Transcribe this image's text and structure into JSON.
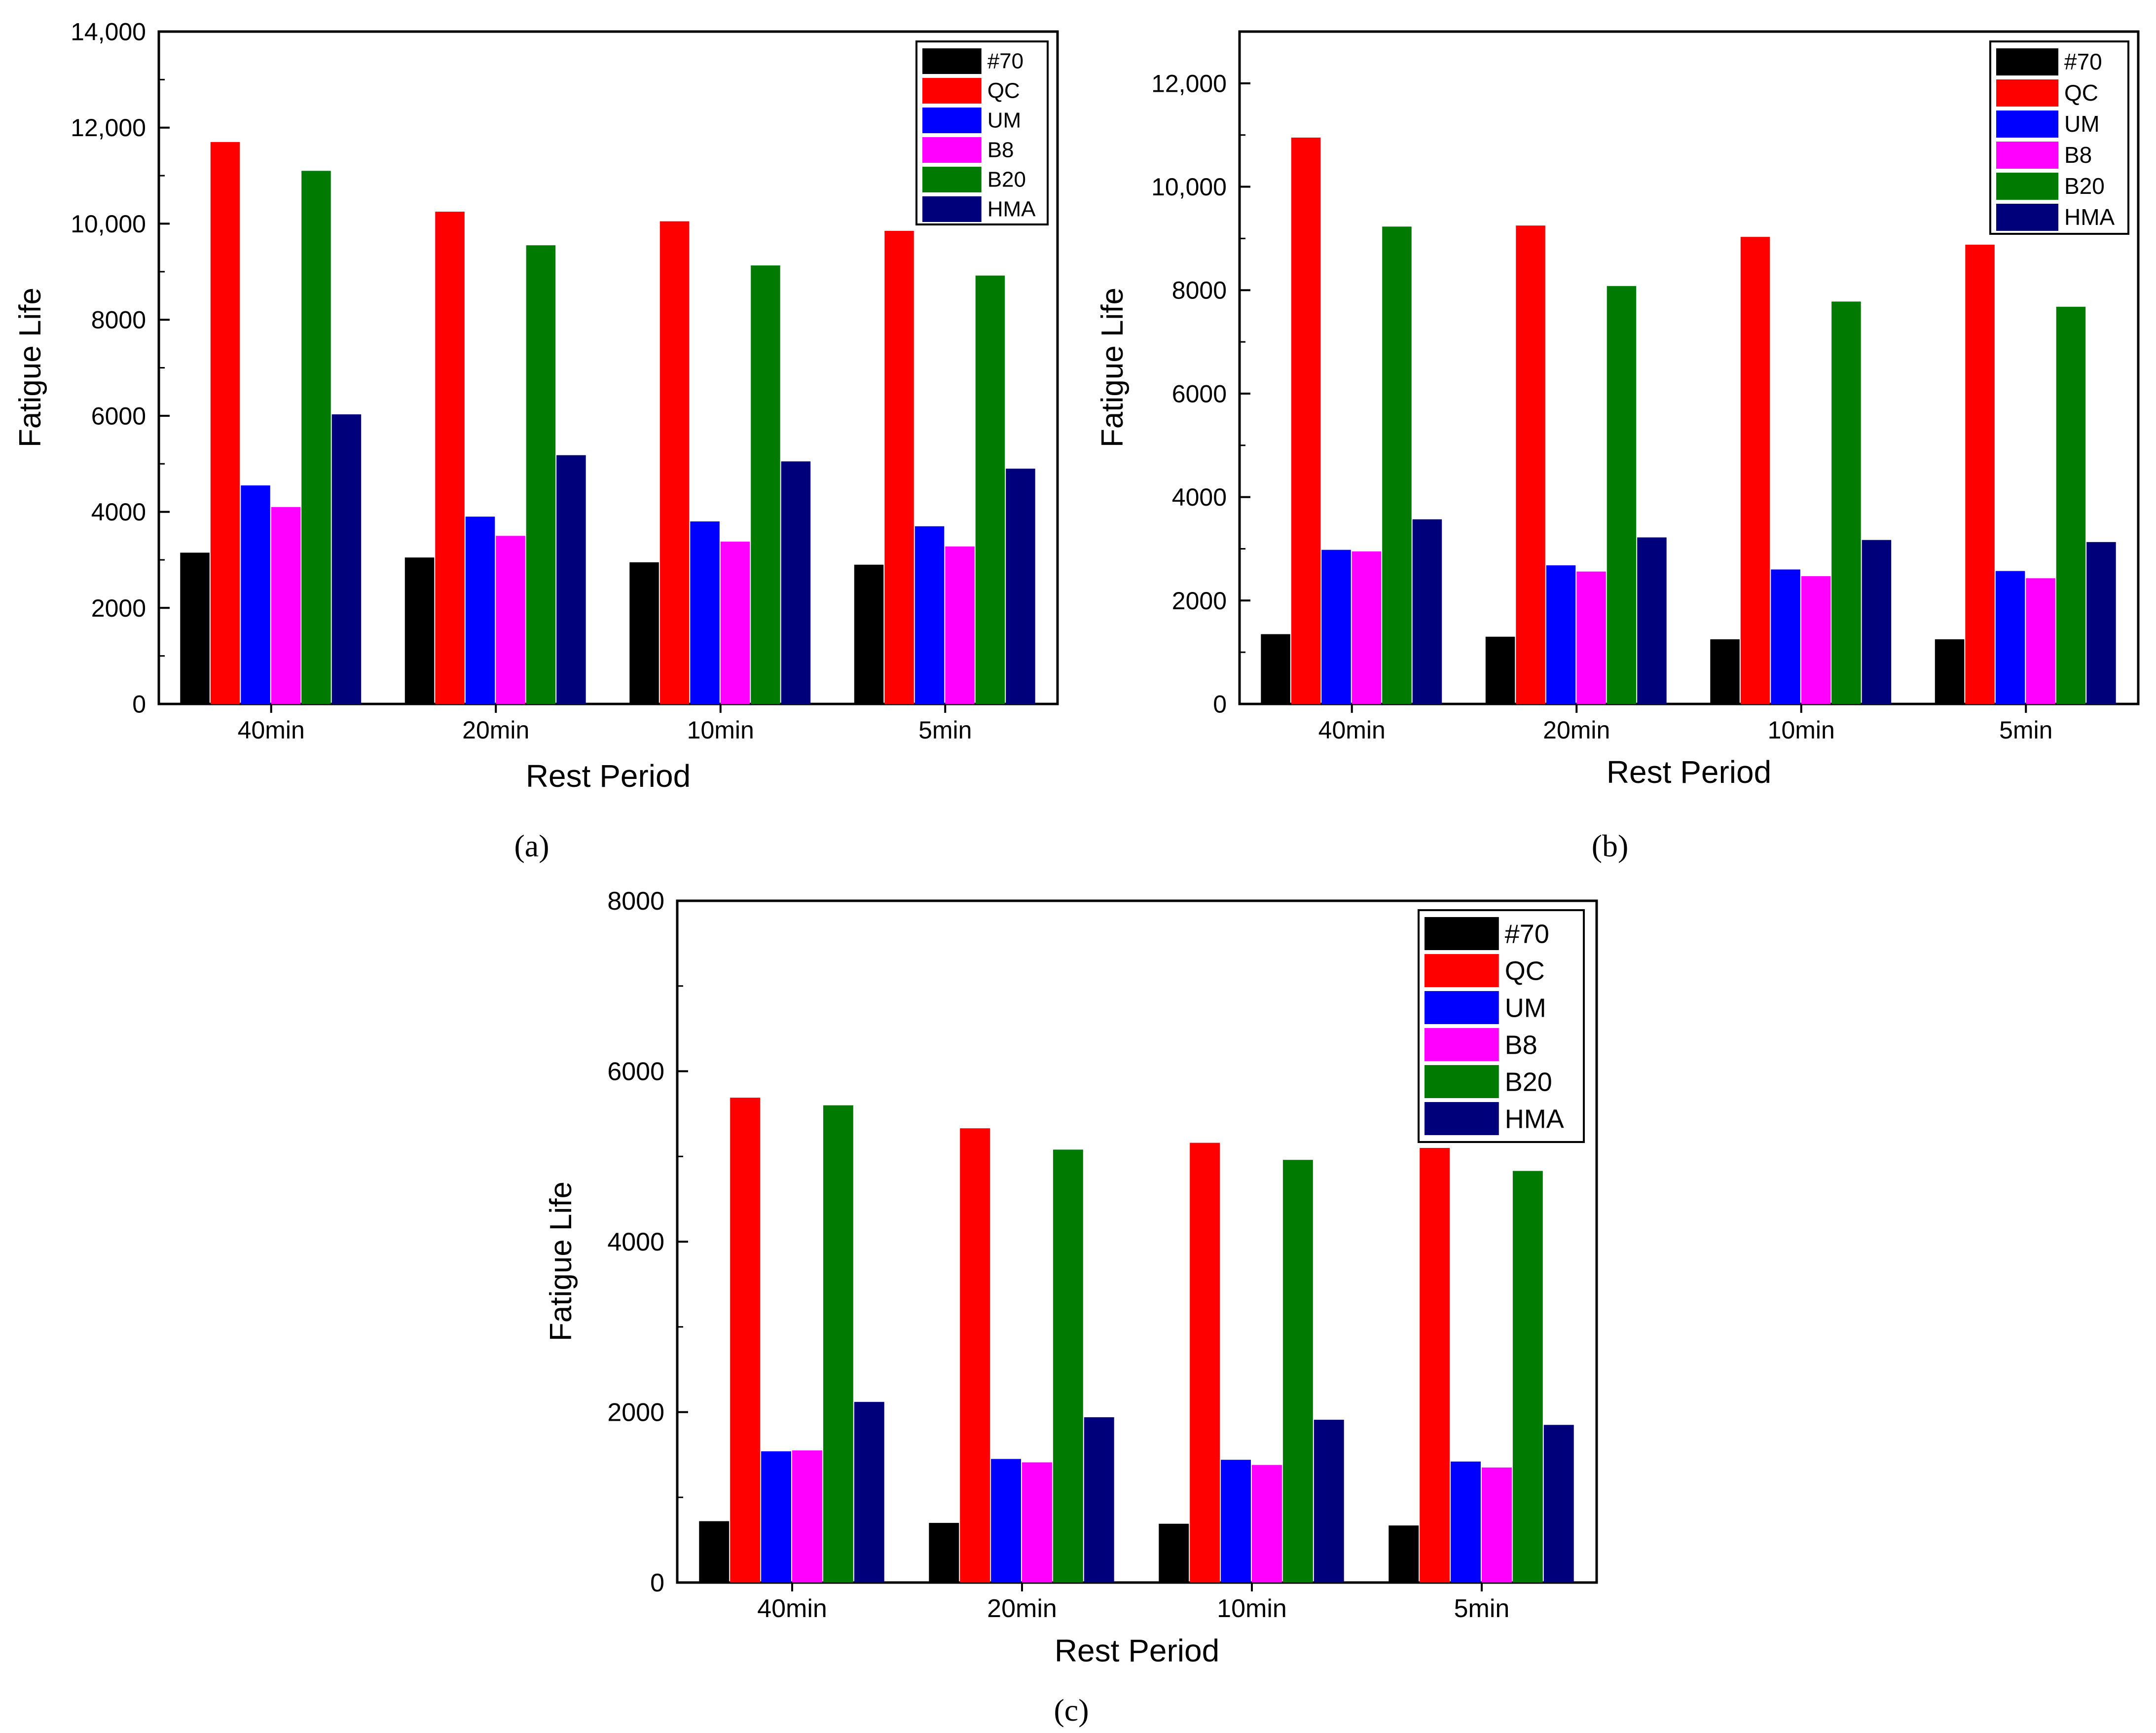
{
  "figure": {
    "panel_labels": [
      "(a)",
      "(b)",
      "(c)"
    ]
  },
  "colors": {
    "#70": "#000000",
    "QC": "#ff0000",
    "UM": "#0000ff",
    "B8": "#ff00ff",
    "B20": "#007a00",
    "HMA": "#00007a"
  },
  "chart_data": [
    {
      "type": "bar",
      "panel": "(a)",
      "xlabel": "Rest Period",
      "ylabel": "Fatigue Life",
      "categories": [
        "40min",
        "20min",
        "10min",
        "5min"
      ],
      "ylim": [
        0,
        14000
      ],
      "yticks": [
        0,
        2000,
        4000,
        6000,
        8000,
        10000,
        12000,
        14000
      ],
      "ytick_labels": [
        "0",
        "2000",
        "4000",
        "6000",
        "8000",
        "10,000",
        "12,000",
        "14,000"
      ],
      "legend_position": "top-right",
      "series": [
        {
          "name": "#70",
          "values": [
            3150,
            3050,
            2950,
            2900
          ]
        },
        {
          "name": "QC",
          "values": [
            11700,
            10250,
            10050,
            9850
          ]
        },
        {
          "name": "UM",
          "values": [
            4550,
            3900,
            3800,
            3700
          ]
        },
        {
          "name": "B8",
          "values": [
            4100,
            3500,
            3380,
            3280
          ]
        },
        {
          "name": "B20",
          "values": [
            11100,
            9550,
            9130,
            8920
          ]
        },
        {
          "name": "HMA",
          "values": [
            6030,
            5180,
            5050,
            4900
          ]
        }
      ]
    },
    {
      "type": "bar",
      "panel": "(b)",
      "xlabel": "Rest Period",
      "ylabel": "Fatigue Life",
      "categories": [
        "40min",
        "20min",
        "10min",
        "5min"
      ],
      "ylim": [
        0,
        13000
      ],
      "yticks": [
        0,
        2000,
        4000,
        6000,
        8000,
        10000,
        12000
      ],
      "ytick_labels": [
        "0",
        "2000",
        "4000",
        "6000",
        "8000",
        "10,000",
        "12,000"
      ],
      "legend_position": "top-right",
      "series": [
        {
          "name": "#70",
          "values": [
            1350,
            1300,
            1250,
            1250
          ]
        },
        {
          "name": "QC",
          "values": [
            10950,
            9250,
            9030,
            8880
          ]
        },
        {
          "name": "UM",
          "values": [
            2980,
            2680,
            2600,
            2570
          ]
        },
        {
          "name": "B8",
          "values": [
            2950,
            2560,
            2470,
            2430
          ]
        },
        {
          "name": "B20",
          "values": [
            9230,
            8080,
            7780,
            7680
          ]
        },
        {
          "name": "HMA",
          "values": [
            3570,
            3220,
            3170,
            3130
          ]
        }
      ]
    },
    {
      "type": "bar",
      "panel": "(c)",
      "xlabel": "Rest Period",
      "ylabel": "Fatigue Life",
      "categories": [
        "40min",
        "20min",
        "10min",
        "5min"
      ],
      "ylim": [
        0,
        8000
      ],
      "yticks": [
        0,
        2000,
        4000,
        6000,
        8000
      ],
      "ytick_labels": [
        "0",
        "2000",
        "4000",
        "6000",
        "8000"
      ],
      "legend_position": "top-right",
      "series": [
        {
          "name": "#70",
          "values": [
            720,
            700,
            690,
            670
          ]
        },
        {
          "name": "QC",
          "values": [
            5690,
            5330,
            5160,
            5100
          ]
        },
        {
          "name": "UM",
          "values": [
            1540,
            1450,
            1440,
            1420
          ]
        },
        {
          "name": "B8",
          "values": [
            1550,
            1410,
            1380,
            1350
          ]
        },
        {
          "name": "B20",
          "values": [
            5600,
            5080,
            4960,
            4830
          ]
        },
        {
          "name": "HMA",
          "values": [
            2120,
            1940,
            1910,
            1850
          ]
        }
      ]
    }
  ]
}
